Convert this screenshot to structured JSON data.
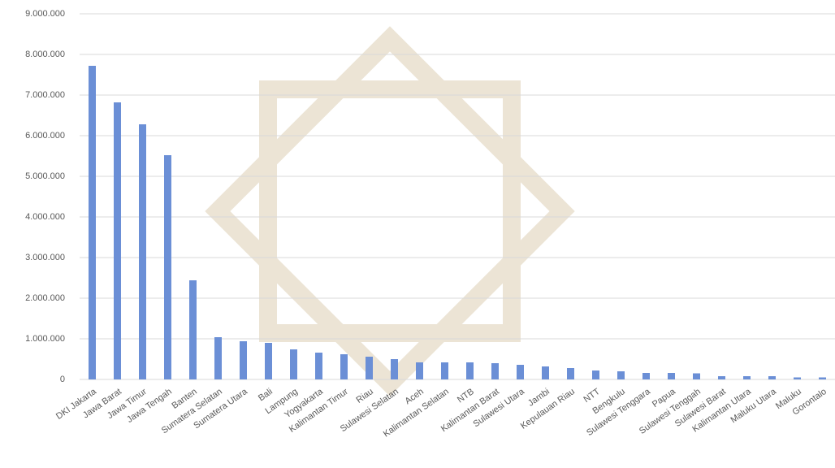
{
  "chart_data": {
    "type": "bar",
    "categories": [
      "DKI Jakarta",
      "Jawa Barat",
      "Jawa Timur",
      "Jawa Tengah",
      "Banten",
      "Sumatera Selatan",
      "Sumatera Utara",
      "Bali",
      "Lampung",
      "Yogyakarta",
      "Kalimantan Timur",
      "Riau",
      "Sulawesi Selatan",
      "Aceh",
      "Kalimantan Selatan",
      "NTB",
      "Kalimantan Barat",
      "Sulawesi Utara",
      "Jambi",
      "Kepulauan Riau",
      "NTT",
      "Bengkulu",
      "Sulawesi Tenggara",
      "Papua",
      "Sulawesi Tenggah",
      "Sulawesi Barat",
      "Kalimantan Utara",
      "Maluku Utara",
      "Maluku",
      "Gorontalo"
    ],
    "values": [
      7720000,
      6820000,
      6280000,
      5520000,
      2440000,
      1040000,
      940000,
      900000,
      740000,
      660000,
      620000,
      560000,
      500000,
      420000,
      420000,
      420000,
      400000,
      360000,
      320000,
      280000,
      220000,
      200000,
      160000,
      160000,
      150000,
      80000,
      80000,
      80000,
      50000,
      50000
    ],
    "color": "#6b8fd6",
    "ylim": [
      0,
      9000000
    ],
    "yticks": [
      0,
      {
        "value": 1000000,
        "label": "1.000.000"
      },
      {
        "value": 2000000,
        "label": "2.000.000"
      },
      {
        "value": 3000000,
        "label": "3.000.000"
      },
      {
        "value": 4000000,
        "label": "4.000.000"
      },
      {
        "value": 5000000,
        "label": "5.000.000"
      },
      {
        "value": 6000000,
        "label": "6.000.000"
      },
      {
        "value": 7000000,
        "label": "7.000.000"
      },
      {
        "value": 8000000,
        "label": "8.000.000"
      },
      {
        "value": 9000000,
        "label": "9.000.000"
      }
    ],
    "grid": true
  }
}
